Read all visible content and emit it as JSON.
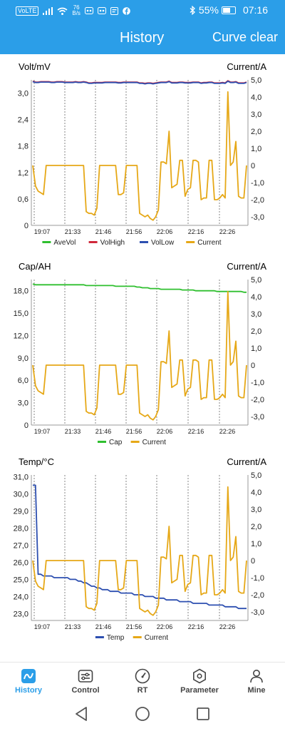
{
  "status_bar": {
    "network_badge": "VoLTE",
    "speed_value": "76",
    "speed_unit": "B/s",
    "battery": "55%",
    "time": "07:16",
    "icons": [
      "signal-icon",
      "wifi-icon",
      "notification-icon",
      "notification-icon",
      "message-icon",
      "facebook-icon",
      "bluetooth-icon",
      "battery-icon"
    ]
  },
  "header": {
    "title": "History",
    "action": "Curve clear",
    "color": "#2b9ee8"
  },
  "time_labels": [
    "19:07",
    "21:33",
    "21:46",
    "21:56",
    "22:06",
    "22:16",
    "22:26"
  ],
  "current_axis": {
    "label": "Current/A",
    "ticks": [
      "5,0",
      "4,0",
      "3,0",
      "2,0",
      "1,0",
      "0",
      "-1,0",
      "-2,0",
      "-3,0"
    ],
    "range": [
      -3.5,
      5.0
    ]
  },
  "current_series": [
    0,
    -1.2,
    -1.5,
    -1.6,
    -1.7,
    0,
    0,
    0,
    0,
    0,
    0,
    0,
    0,
    0,
    0,
    0,
    0,
    0,
    0,
    0,
    -2.7,
    -2.8,
    -2.8,
    -2.9,
    -2.5,
    0,
    0,
    0,
    0,
    0,
    0,
    0,
    -1.7,
    -1.7,
    -1.6,
    0,
    0,
    0,
    0,
    0,
    -2.8,
    -2.9,
    -3.0,
    -2.9,
    -3.1,
    -3.2,
    -3.0,
    -2.6,
    0.2,
    0.2,
    0.1,
    2.0,
    -1.3,
    -1.2,
    -1.1,
    0.3,
    0.3,
    -1.8,
    -1.4,
    -1.3,
    0.3,
    0.3,
    0.2,
    -2.0,
    -1.9,
    -1.9,
    0.3,
    0.3,
    -2.0,
    -2.0,
    -1.9,
    -1.7,
    -1.9,
    4.3,
    0,
    0.2,
    1.4,
    -1.8,
    -1.9,
    -1.9,
    0
  ],
  "charts": [
    {
      "left_axis_label": "Volt/mV",
      "left_ticks": [
        "3,0",
        "2,4",
        "1,8",
        "1,2",
        "0,6",
        "0"
      ],
      "left_range": [
        0,
        3.3
      ],
      "legend": [
        {
          "name": "AveVol",
          "color": "#2fbf2f"
        },
        {
          "name": "VolHigh",
          "color": "#d0283a"
        },
        {
          "name": "VolLow",
          "color": "#2d4fb0"
        },
        {
          "name": "Current",
          "color": "#e6a817"
        }
      ],
      "series": [
        {
          "name": "VolHigh",
          "color": "#d0283a",
          "values": [
            3.27,
            3.25,
            3.25,
            3.26,
            3.26,
            3.26,
            3.26,
            3.25,
            3.25,
            3.26,
            3.26,
            3.26,
            3.25,
            3.25,
            3.25,
            3.25,
            3.26,
            3.25,
            3.25,
            3.26,
            3.25,
            3.23,
            3.23,
            3.24,
            3.24,
            3.24,
            3.24,
            3.25,
            3.25,
            3.25,
            3.25,
            3.25,
            3.24,
            3.24,
            3.25,
            3.25,
            3.25,
            3.25,
            3.25,
            3.25,
            3.23,
            3.23,
            3.22,
            3.23,
            3.23,
            3.22,
            3.23,
            3.24,
            3.25,
            3.25,
            3.25,
            3.27,
            3.24,
            3.24,
            3.24,
            3.25,
            3.25,
            3.24,
            3.24,
            3.24,
            3.25,
            3.25,
            3.25,
            3.23,
            3.24,
            3.24,
            3.25,
            3.25,
            3.23,
            3.23,
            3.23,
            3.24,
            3.23,
            3.28,
            3.25,
            3.25,
            3.26,
            3.23,
            3.23,
            3.23,
            3.25
          ]
        },
        {
          "name": "VolLow",
          "color": "#2d4fb0",
          "values": [
            3.26,
            3.24,
            3.24,
            3.25,
            3.25,
            3.25,
            3.25,
            3.24,
            3.24,
            3.25,
            3.25,
            3.25,
            3.24,
            3.24,
            3.24,
            3.24,
            3.25,
            3.24,
            3.24,
            3.25,
            3.24,
            3.22,
            3.22,
            3.23,
            3.23,
            3.23,
            3.23,
            3.24,
            3.24,
            3.24,
            3.24,
            3.24,
            3.23,
            3.23,
            3.24,
            3.24,
            3.24,
            3.24,
            3.24,
            3.24,
            3.22,
            3.22,
            3.21,
            3.22,
            3.22,
            3.21,
            3.22,
            3.23,
            3.24,
            3.24,
            3.24,
            3.26,
            3.23,
            3.23,
            3.23,
            3.24,
            3.24,
            3.23,
            3.23,
            3.23,
            3.24,
            3.24,
            3.24,
            3.22,
            3.23,
            3.23,
            3.24,
            3.24,
            3.22,
            3.22,
            3.22,
            3.23,
            3.22,
            3.27,
            3.24,
            3.24,
            3.25,
            3.22,
            3.22,
            3.22,
            3.24
          ]
        }
      ]
    },
    {
      "left_axis_label": "Cap/AH",
      "left_ticks": [
        "18,0",
        "15,0",
        "12,0",
        "9,0",
        "6,0",
        "3,0",
        "0"
      ],
      "left_range": [
        0,
        19.5
      ],
      "legend": [
        {
          "name": "Cap",
          "color": "#2fbf2f"
        },
        {
          "name": "Current",
          "color": "#e6a817"
        }
      ],
      "series": [
        {
          "name": "Cap",
          "color": "#2fbf2f",
          "values": [
            18.9,
            18.8,
            18.8,
            18.8,
            18.8,
            18.8,
            18.8,
            18.8,
            18.8,
            18.8,
            18.8,
            18.8,
            18.8,
            18.8,
            18.8,
            18.8,
            18.8,
            18.8,
            18.8,
            18.8,
            18.7,
            18.7,
            18.7,
            18.7,
            18.7,
            18.7,
            18.7,
            18.7,
            18.7,
            18.7,
            18.7,
            18.6,
            18.6,
            18.6,
            18.6,
            18.6,
            18.6,
            18.6,
            18.6,
            18.5,
            18.5,
            18.4,
            18.4,
            18.4,
            18.3,
            18.3,
            18.3,
            18.3,
            18.2,
            18.2,
            18.2,
            18.2,
            18.2,
            18.2,
            18.2,
            18.2,
            18.1,
            18.1,
            18.1,
            18.1,
            18.1,
            18.0,
            18.0,
            18.0,
            18.0,
            18.0,
            18.0,
            18.0,
            18.0,
            17.9,
            17.9,
            17.9,
            17.9,
            17.9,
            17.9,
            17.9,
            17.9,
            17.9,
            17.9,
            17.8,
            17.8
          ]
        }
      ]
    },
    {
      "left_axis_label": "Temp/°C",
      "left_ticks": [
        "31,0",
        "30,0",
        "29,0",
        "28,0",
        "27,0",
        "26,0",
        "25,0",
        "24,0",
        "23,0"
      ],
      "left_range": [
        22.6,
        31.1
      ],
      "legend": [
        {
          "name": "Temp",
          "color": "#2d4fb0"
        },
        {
          "name": "Current",
          "color": "#e6a817"
        }
      ],
      "series": [
        {
          "name": "Temp",
          "color": "#2d4fb0",
          "values": [
            30.5,
            30.5,
            25.3,
            25.3,
            25.2,
            25.2,
            25.2,
            25.2,
            25.1,
            25.1,
            25.1,
            25.1,
            25.1,
            25.1,
            25.0,
            25.0,
            25.0,
            24.9,
            24.9,
            24.8,
            24.8,
            24.7,
            24.6,
            24.6,
            24.5,
            24.5,
            24.4,
            24.4,
            24.4,
            24.3,
            24.3,
            24.3,
            24.3,
            24.2,
            24.2,
            24.2,
            24.2,
            24.2,
            24.1,
            24.1,
            24.1,
            24.1,
            24.0,
            24.0,
            24.0,
            24.0,
            23.9,
            23.9,
            23.9,
            23.9,
            23.8,
            23.8,
            23.8,
            23.8,
            23.8,
            23.7,
            23.7,
            23.7,
            23.7,
            23.7,
            23.6,
            23.6,
            23.6,
            23.6,
            23.6,
            23.6,
            23.5,
            23.5,
            23.5,
            23.5,
            23.5,
            23.5,
            23.4,
            23.4,
            23.4,
            23.4,
            23.4,
            23.3,
            23.3,
            23.3,
            23.3
          ]
        }
      ]
    }
  ],
  "tabs": [
    {
      "label": "History",
      "icon": "history-chart-icon",
      "active": true
    },
    {
      "label": "Control",
      "icon": "control-sliders-icon",
      "active": false
    },
    {
      "label": "RT",
      "icon": "gauge-icon",
      "active": false
    },
    {
      "label": "Parameter",
      "icon": "hexagon-settings-icon",
      "active": false
    },
    {
      "label": "Mine",
      "icon": "person-icon",
      "active": false
    }
  ],
  "nav": [
    "back-icon",
    "home-icon",
    "recents-icon"
  ]
}
